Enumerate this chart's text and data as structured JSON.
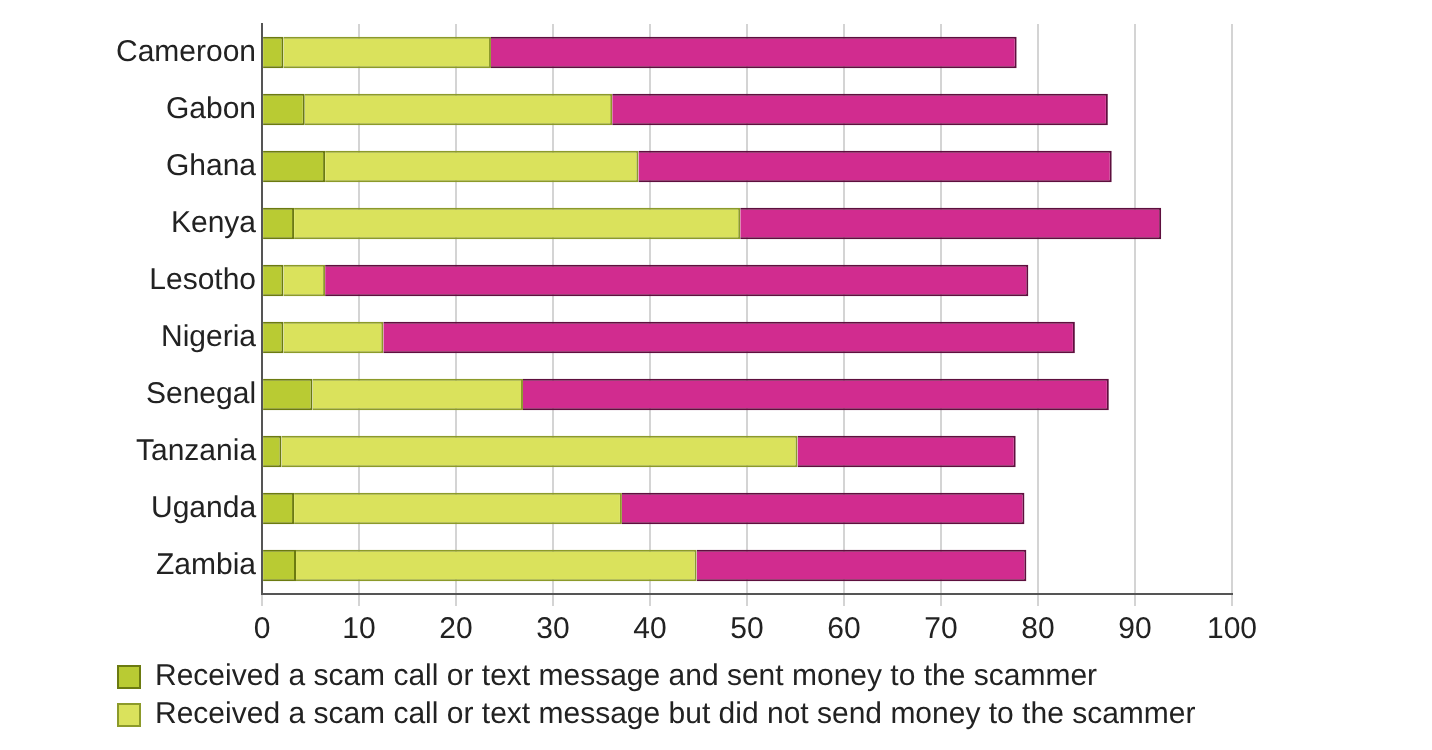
{
  "chart_data": {
    "type": "bar",
    "orientation": "horizontal",
    "stacked": true,
    "categories": [
      "Cameroon",
      "Gabon",
      "Ghana",
      "Kenya",
      "Lesotho",
      "Nigeria",
      "Senegal",
      "Tanzania",
      "Uganda",
      "Zambia"
    ],
    "series": [
      {
        "name": "Received a scam call or text message and sent money to the scammer",
        "color": "#b9cb33",
        "values": [
          2.2,
          4.4,
          6.5,
          3.3,
          2.2,
          2.2,
          5.2,
          2.0,
          3.3,
          3.5
        ]
      },
      {
        "name": "Received a scam call or text message but did not send money to the scammer",
        "color": "#dae25c",
        "values": [
          21.4,
          31.7,
          32.3,
          46.0,
          4.3,
          10.3,
          21.7,
          53.2,
          33.8,
          41.3
        ]
      },
      {
        "color": "#d12c8f",
        "values": [
          54.2,
          51.1,
          48.8,
          43.4,
          72.5,
          71.3,
          60.4,
          22.5,
          41.5,
          34.0
        ]
      }
    ],
    "xlim": [
      0,
      100
    ],
    "xticks": [
      0,
      10,
      20,
      30,
      40,
      50,
      60,
      70,
      80,
      90,
      100
    ],
    "grid": "x",
    "legend": "bottom left"
  }
}
